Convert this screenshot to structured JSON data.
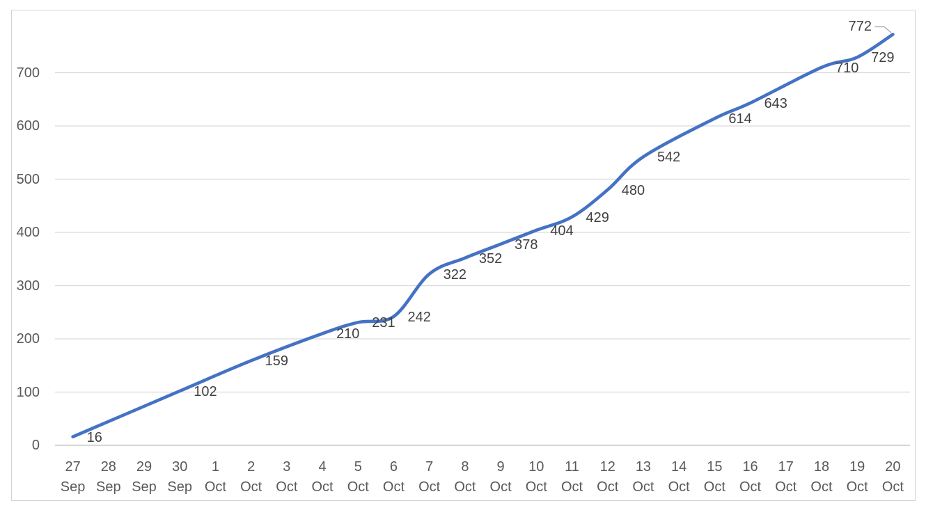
{
  "chart_data": {
    "type": "line",
    "title": "",
    "legend": false,
    "grid": true,
    "smooth": true,
    "colors": {
      "line": "#4472C4",
      "gridline": "#D9D9D9",
      "axis_line": "#C9C9C9",
      "axis_text": "#595959",
      "data_label_text": "#404040",
      "chart_border": "#D2D2D2",
      "leader_line": "#A6A6A6"
    },
    "categories": [
      {
        "day": "27",
        "month": "Sep"
      },
      {
        "day": "28",
        "month": "Sep"
      },
      {
        "day": "29",
        "month": "Sep"
      },
      {
        "day": "30",
        "month": "Sep"
      },
      {
        "day": "1",
        "month": "Oct"
      },
      {
        "day": "2",
        "month": "Oct"
      },
      {
        "day": "3",
        "month": "Oct"
      },
      {
        "day": "4",
        "month": "Oct"
      },
      {
        "day": "5",
        "month": "Oct"
      },
      {
        "day": "6",
        "month": "Oct"
      },
      {
        "day": "7",
        "month": "Oct"
      },
      {
        "day": "8",
        "month": "Oct"
      },
      {
        "day": "9",
        "month": "Oct"
      },
      {
        "day": "10",
        "month": "Oct"
      },
      {
        "day": "11",
        "month": "Oct"
      },
      {
        "day": "12",
        "month": "Oct"
      },
      {
        "day": "13",
        "month": "Oct"
      },
      {
        "day": "14",
        "month": "Oct"
      },
      {
        "day": "15",
        "month": "Oct"
      },
      {
        "day": "16",
        "month": "Oct"
      },
      {
        "day": "17",
        "month": "Oct"
      },
      {
        "day": "18",
        "month": "Oct"
      },
      {
        "day": "19",
        "month": "Oct"
      },
      {
        "day": "20",
        "month": "Oct"
      }
    ],
    "y_axis": {
      "min": 0,
      "max": 780,
      "major_unit": 100,
      "tick_labels": [
        "0",
        "100",
        "200",
        "300",
        "400",
        "500",
        "600",
        "700"
      ]
    },
    "series": [
      {
        "name": "Series 1",
        "color": "#4472C4",
        "points": [
          {
            "category": "27 Sep",
            "value": 16
          },
          {
            "category": "30 Sep",
            "value": 102
          },
          {
            "category": "2 Oct",
            "value": 159
          },
          {
            "category": "4 Oct",
            "value": 210
          },
          {
            "category": "5 Oct",
            "value": 231
          },
          {
            "category": "6 Oct",
            "value": 242
          },
          {
            "category": "7 Oct",
            "value": 322
          },
          {
            "category": "8 Oct",
            "value": 352
          },
          {
            "category": "9 Oct",
            "value": 378
          },
          {
            "category": "10 Oct",
            "value": 404
          },
          {
            "category": "11 Oct",
            "value": 429
          },
          {
            "category": "12 Oct",
            "value": 480
          },
          {
            "category": "13 Oct",
            "value": 542
          },
          {
            "category": "15 Oct",
            "value": 614
          },
          {
            "category": "16 Oct",
            "value": 643
          },
          {
            "category": "18 Oct",
            "value": 710
          },
          {
            "category": "19 Oct",
            "value": 729
          },
          {
            "category": "20 Oct",
            "value": 772
          }
        ]
      }
    ],
    "data_labels": {
      "show": true,
      "position": "right-of-point",
      "last_label_moved_with_leader": true
    }
  }
}
